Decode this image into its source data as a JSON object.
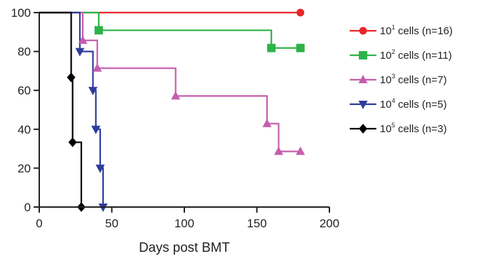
{
  "chart_data": {
    "type": "line",
    "step": true,
    "title": "",
    "xlabel": "Days post BMT",
    "ylabel": "",
    "xlim": [
      0,
      200
    ],
    "ylim": [
      0,
      100
    ],
    "xticks": [
      0,
      50,
      100,
      150,
      200
    ],
    "yticks": [
      0,
      20,
      40,
      60,
      80,
      100
    ],
    "grid": false,
    "legend_position": "right",
    "series": [
      {
        "name": "10^1 cells (n=16)",
        "legend_base": "10",
        "legend_exp": "1",
        "legend_suffix": " cells (n=16)",
        "color": "#e8252a",
        "marker": "circle",
        "steps": [
          [
            0,
            100
          ],
          [
            180,
            100
          ]
        ],
        "markers": [
          [
            180,
            100
          ]
        ]
      },
      {
        "name": "10^2 cells (n=11)",
        "legend_base": "10",
        "legend_exp": "2",
        "legend_suffix": " cells (n=11)",
        "color": "#2db34a",
        "marker": "square",
        "steps": [
          [
            0,
            100
          ],
          [
            41,
            90.9
          ],
          [
            160,
            81.8
          ],
          [
            180,
            81.8
          ]
        ],
        "markers": [
          [
            41,
            90.9
          ],
          [
            160,
            81.8
          ],
          [
            180,
            81.8
          ]
        ]
      },
      {
        "name": "10^3 cells (n=7)",
        "legend_base": "10",
        "legend_exp": "3",
        "legend_suffix": " cells (n=7)",
        "color": "#c55eae",
        "marker": "triangle-up",
        "steps": [
          [
            0,
            100
          ],
          [
            30,
            85.7
          ],
          [
            40,
            71.4
          ],
          [
            94,
            57.1
          ],
          [
            157,
            42.9
          ],
          [
            165,
            28.6
          ],
          [
            180,
            28.6
          ]
        ],
        "markers": [
          [
            30,
            85.7
          ],
          [
            40,
            71.4
          ],
          [
            94,
            57.1
          ],
          [
            157,
            42.9
          ],
          [
            165,
            28.6
          ],
          [
            180,
            28.6
          ]
        ]
      },
      {
        "name": "10^4 cells (n=5)",
        "legend_base": "10",
        "legend_exp": "4",
        "legend_suffix": " cells (n=5)",
        "color": "#2e3c9c",
        "marker": "triangle-down",
        "steps": [
          [
            0,
            100
          ],
          [
            28,
            80
          ],
          [
            37,
            60
          ],
          [
            39,
            40
          ],
          [
            42,
            20
          ],
          [
            44,
            0
          ]
        ],
        "markers": [
          [
            28,
            80
          ],
          [
            37,
            60
          ],
          [
            39,
            40
          ],
          [
            42,
            20
          ],
          [
            44,
            0
          ]
        ]
      },
      {
        "name": "10^5 cells (n=3)",
        "legend_base": "10",
        "legend_exp": "5",
        "legend_suffix": " cells (n=3)",
        "color": "#000000",
        "marker": "diamond",
        "steps": [
          [
            0,
            100
          ],
          [
            22,
            66.7
          ],
          [
            23,
            33.3
          ],
          [
            29,
            0
          ]
        ],
        "markers": [
          [
            22,
            66.7
          ],
          [
            23,
            33.3
          ],
          [
            29,
            0
          ]
        ]
      }
    ]
  }
}
